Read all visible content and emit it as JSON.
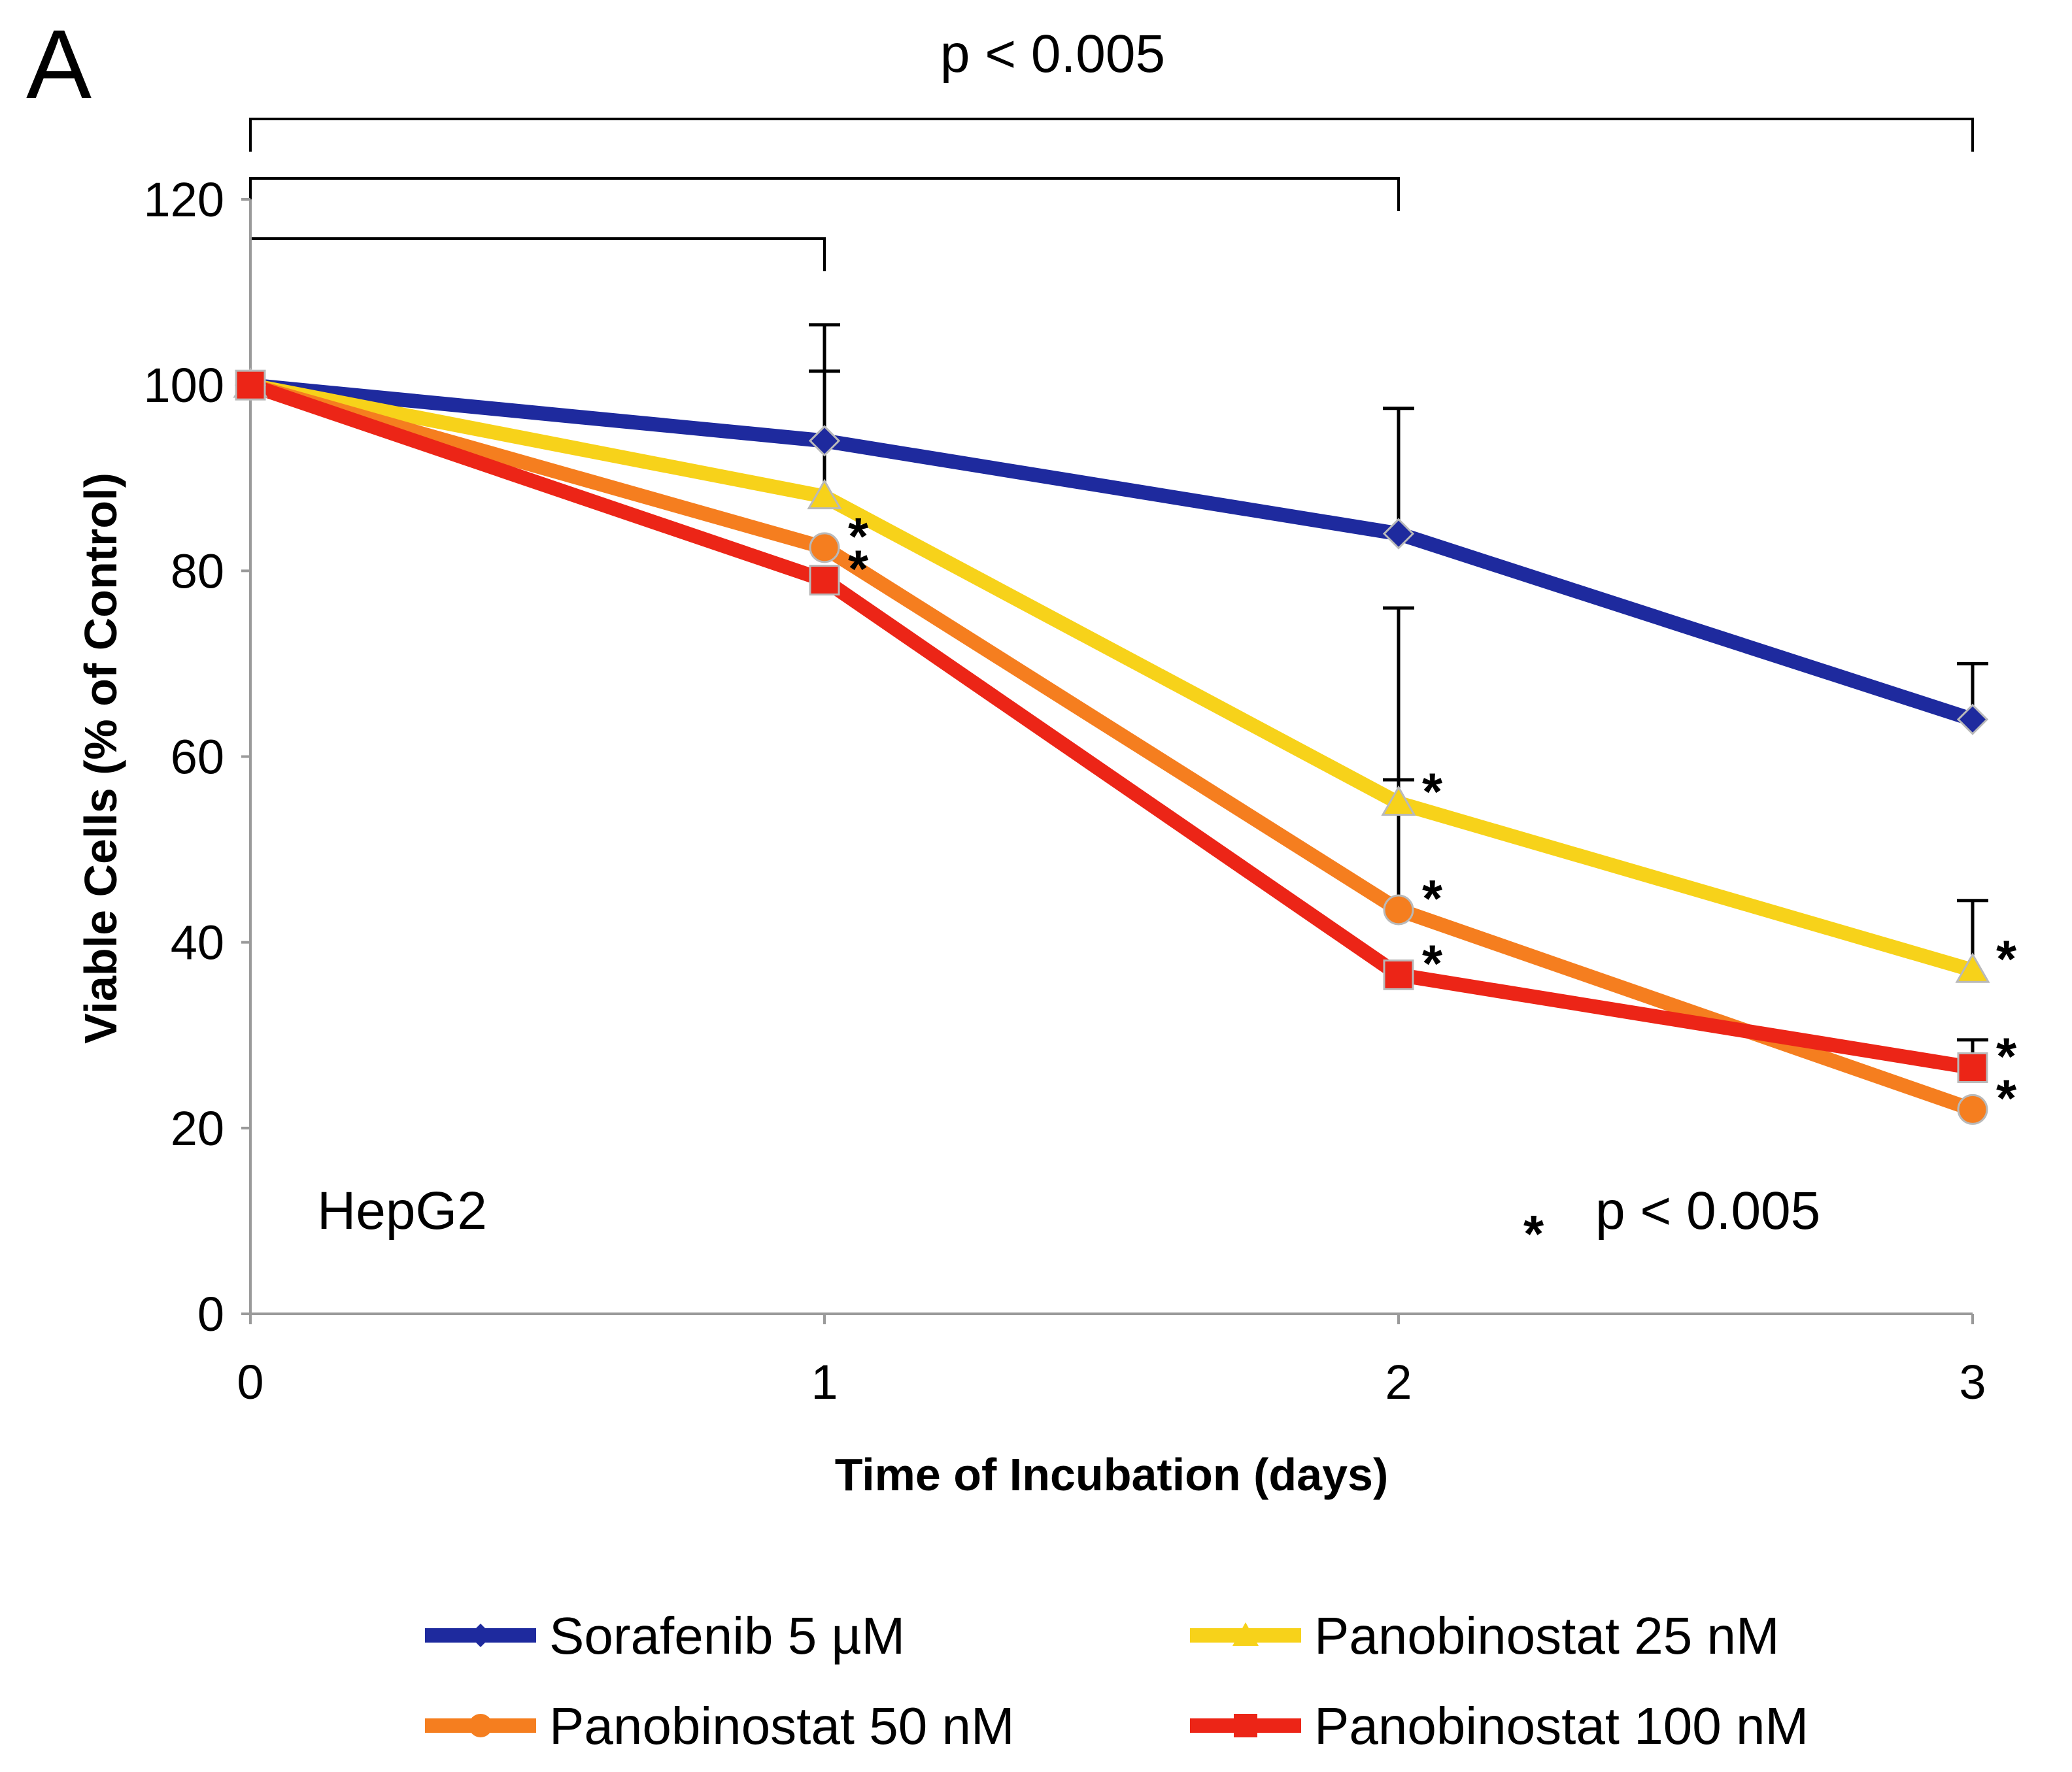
{
  "panel_label": "A",
  "colors": {
    "sorafenib": "#1e2a9e",
    "pano25": "#f7d21a",
    "pano50": "#f57e1f",
    "pano100": "#ec2517"
  },
  "chart_data": {
    "type": "line",
    "title": "",
    "xlabel": "Time of Incubation (days)",
    "ylabel": "Viable Cells (% of Control)",
    "x": [
      0,
      1,
      2,
      3
    ],
    "x_ticks": [
      "0",
      "1",
      "2",
      "3"
    ],
    "y_ticks": [
      "0",
      "20",
      "40",
      "60",
      "80",
      "100",
      "120"
    ],
    "xlim": [
      0,
      3
    ],
    "ylim": [
      0,
      120
    ],
    "grid": false,
    "legend_position": "bottom",
    "series": [
      {
        "key": "sorafenib",
        "name": "Sorafenib 5 µM",
        "values": [
          100,
          94,
          84,
          64
        ],
        "error": [
          0,
          12.5,
          13.5,
          6
        ]
      },
      {
        "key": "pano25",
        "name": "Panobinostat 25 nM",
        "values": [
          100,
          88,
          55,
          37
        ],
        "error": [
          0,
          13.5,
          21,
          7.5
        ]
      },
      {
        "key": "pano50",
        "name": "Panobinostat 50 nM",
        "values": [
          100,
          82.5,
          43.5,
          22
        ],
        "error": [
          0,
          0,
          14,
          0
        ]
      },
      {
        "key": "pano100",
        "name": "Panobinostat 100 nM",
        "values": [
          100,
          79,
          36.5,
          26.5
        ],
        "error": [
          0,
          0,
          0,
          3
        ]
      }
    ],
    "annotations": {
      "cell_line": "HepG2",
      "significance_note": "p < 0.005",
      "significance_marker": "*",
      "bracket_label": "p < 0.005",
      "brackets_to_day": [
        1,
        2,
        3
      ]
    },
    "significance_stars": [
      {
        "series": "pano50",
        "x": 1
      },
      {
        "series": "pano100",
        "x": 1
      },
      {
        "series": "pano25",
        "x": 2
      },
      {
        "series": "pano50",
        "x": 2
      },
      {
        "series": "pano100",
        "x": 2
      },
      {
        "series": "pano25",
        "x": 3
      },
      {
        "series": "pano100",
        "x": 3
      },
      {
        "series": "pano50",
        "x": 3
      }
    ]
  }
}
